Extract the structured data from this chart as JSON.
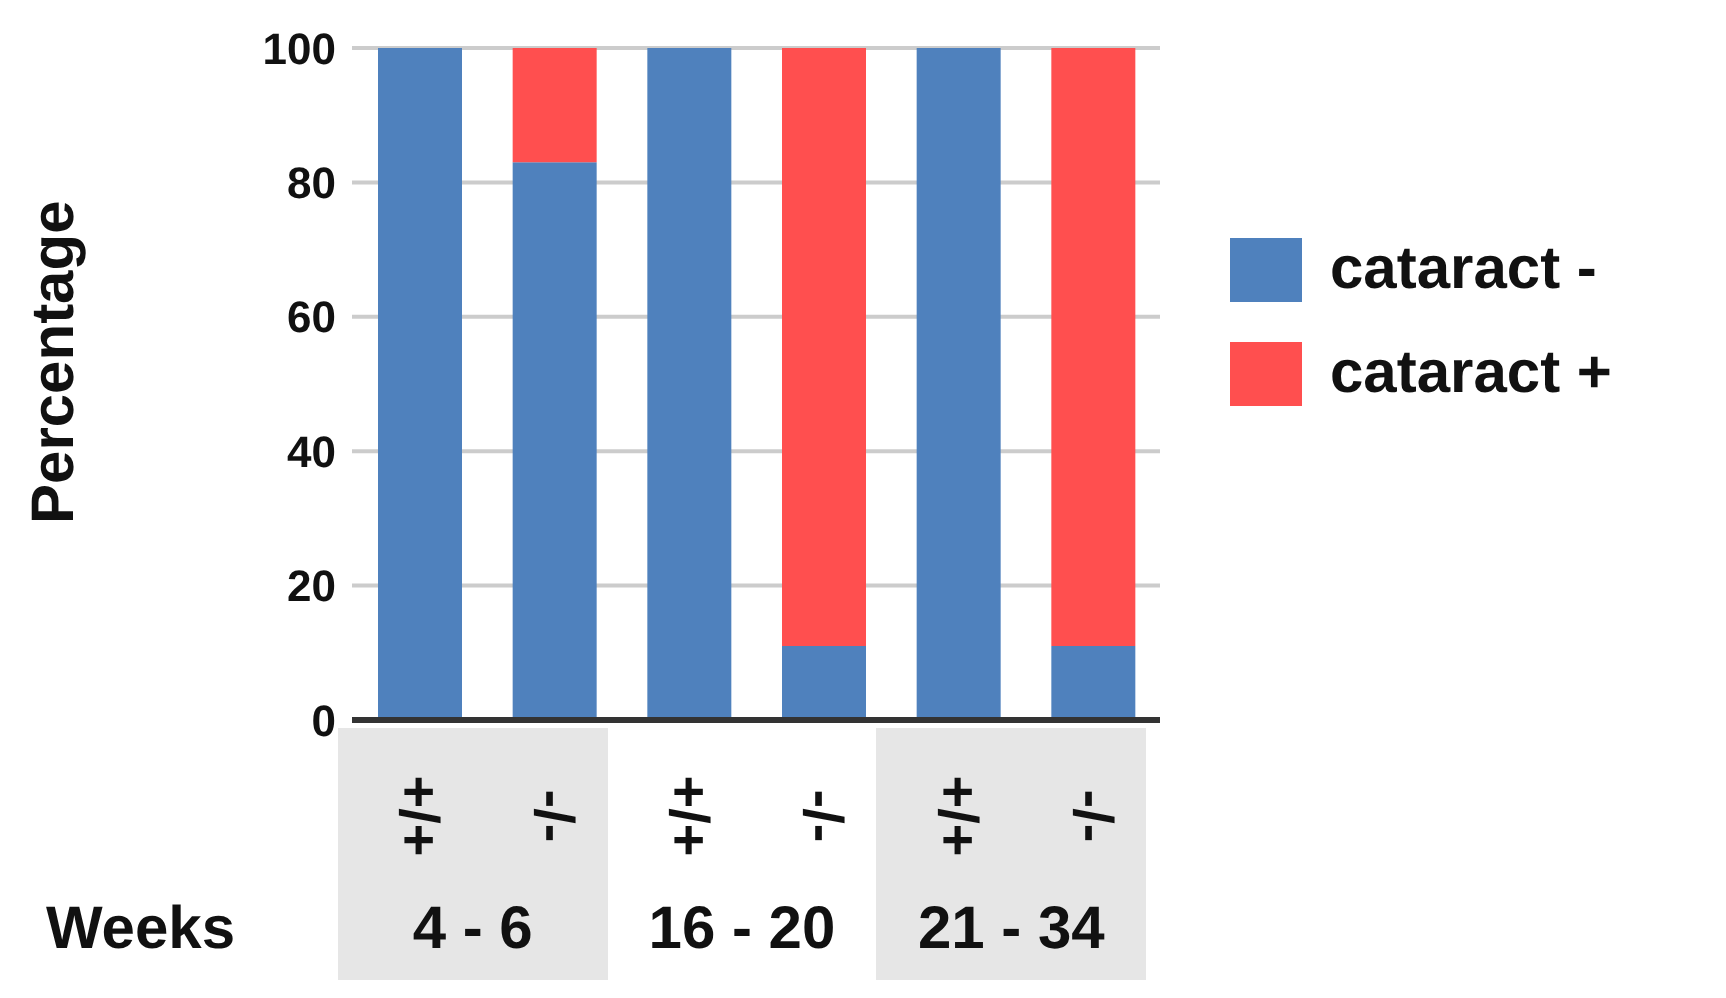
{
  "chart_data": {
    "type": "bar",
    "stacked": true,
    "ylabel": "Percentage",
    "xlabel": "Weeks",
    "categories": [
      "+/+",
      "-/-",
      "+/+",
      "-/-",
      "+/+",
      "-/-"
    ],
    "series": [
      {
        "name": "cataract -",
        "color": "#4f81bd",
        "values": [
          100,
          83,
          100,
          11,
          100,
          11
        ]
      },
      {
        "name": "cataract +",
        "color": "#ff4f4f",
        "values": [
          0,
          17,
          0,
          89,
          0,
          89
        ]
      }
    ],
    "annotations": [
      "4 - 6",
      "16 - 20",
      "21 - 34"
    ],
    "ylim": [
      0,
      100
    ],
    "yticks": [
      0,
      20,
      40,
      60,
      80,
      100
    ],
    "grid": "y",
    "legend": "right"
  }
}
